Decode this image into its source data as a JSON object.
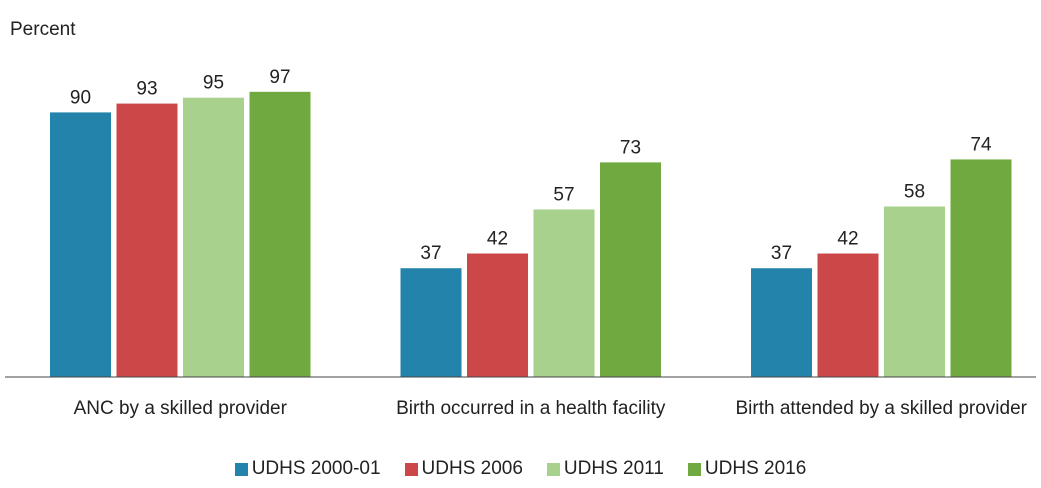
{
  "chart_data": {
    "type": "bar",
    "y_axis_label": "Percent",
    "categories": [
      "ANC by a skilled provider",
      "Birth occurred in a health facility",
      "Birth attended by a skilled provider"
    ],
    "series": [
      {
        "name": "UDHS 2000-01",
        "color": "#2383ab",
        "values": [
          90,
          37,
          37
        ]
      },
      {
        "name": "UDHS 2006",
        "color": "#cc4748",
        "values": [
          93,
          42,
          42
        ]
      },
      {
        "name": "UDHS 2011",
        "color": "#a9d18e",
        "values": [
          95,
          57,
          58
        ]
      },
      {
        "name": "UDHS 2016",
        "color": "#70a93f",
        "values": [
          97,
          73,
          74
        ]
      }
    ],
    "ylim": [
      0,
      100
    ],
    "legend": "bottom"
  }
}
